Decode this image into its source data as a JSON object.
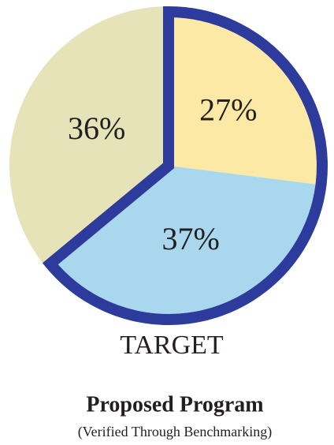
{
  "chart_data": {
    "type": "pie",
    "values": [
      27,
      37,
      36
    ],
    "value_labels": [
      "27%",
      "37%",
      "36%"
    ],
    "colors": [
      "#fde9a6",
      "#a9d8ee",
      "#e6e3b8"
    ],
    "outlined": [
      true,
      true,
      false
    ],
    "outline_color": "#2c3b9c",
    "label": "TARGET",
    "title": "Proposed Program",
    "subtitle": "(Verified Through Benchmarking)"
  }
}
